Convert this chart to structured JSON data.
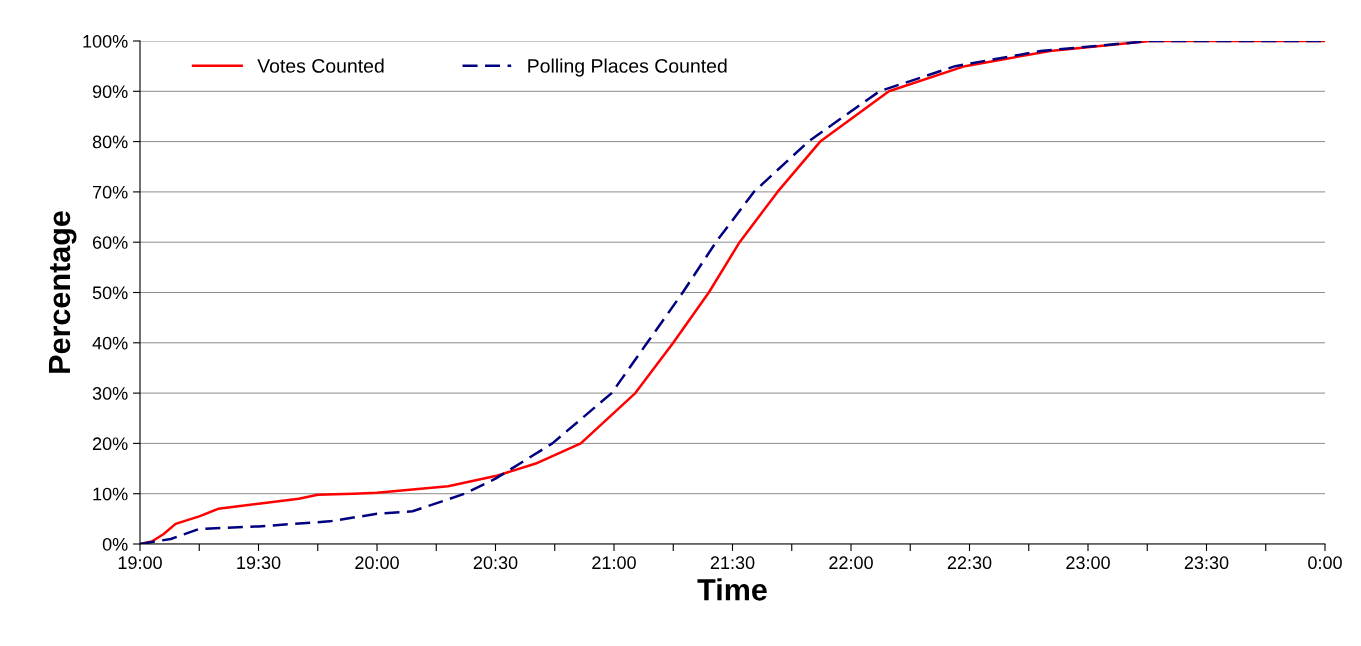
{
  "chart_data": {
    "type": "line",
    "xlabel": "Time",
    "ylabel": "Percentage",
    "xlim": [
      19,
      24
    ],
    "ylim": [
      0,
      100
    ],
    "xticks": [
      {
        "value": 19,
        "label": "19:00"
      },
      {
        "value": 19.25,
        "label": null
      },
      {
        "value": 19.5,
        "label": "19:30"
      },
      {
        "value": 19.75,
        "label": null
      },
      {
        "value": 20,
        "label": "20:00"
      },
      {
        "value": 20.25,
        "label": null
      },
      {
        "value": 20.5,
        "label": "20:30"
      },
      {
        "value": 20.75,
        "label": null
      },
      {
        "value": 21,
        "label": "21:00"
      },
      {
        "value": 21.25,
        "label": null
      },
      {
        "value": 21.5,
        "label": "21:30"
      },
      {
        "value": 21.75,
        "label": null
      },
      {
        "value": 22,
        "label": "22:00"
      },
      {
        "value": 22.25,
        "label": null
      },
      {
        "value": 22.5,
        "label": "22:30"
      },
      {
        "value": 22.75,
        "label": null
      },
      {
        "value": 23,
        "label": "23:00"
      },
      {
        "value": 23.25,
        "label": null
      },
      {
        "value": 23.5,
        "label": "23:30"
      },
      {
        "value": 23.75,
        "label": null
      },
      {
        "value": 24,
        "label": "0:00"
      }
    ],
    "yticks": [
      {
        "value": 0,
        "label": "0%"
      },
      {
        "value": 10,
        "label": "10%"
      },
      {
        "value": 20,
        "label": "20%"
      },
      {
        "value": 30,
        "label": "30%"
      },
      {
        "value": 40,
        "label": "40%"
      },
      {
        "value": 50,
        "label": "50%"
      },
      {
        "value": 60,
        "label": "60%"
      },
      {
        "value": 70,
        "label": "70%"
      },
      {
        "value": 80,
        "label": "80%"
      },
      {
        "value": 90,
        "label": "90%"
      },
      {
        "value": 100,
        "label": "100%"
      }
    ],
    "grid": "y",
    "legend": "top left",
    "marker": "none",
    "series": [
      {
        "name": "Votes Counted",
        "color": "#ff0000",
        "line_style": "solid",
        "x": [
          19.0,
          19.05,
          19.1,
          19.15,
          19.25,
          19.33,
          19.5,
          19.67,
          19.75,
          19.9,
          20.0,
          20.3,
          20.5,
          20.67,
          20.86,
          21.09,
          21.25,
          21.4,
          21.53,
          21.69,
          21.87,
          22.16,
          22.48,
          22.84,
          23.26,
          24.0
        ],
        "values": [
          0,
          0.5,
          2,
          4,
          5.5,
          7,
          8,
          9,
          9.8,
          10,
          10.2,
          11.5,
          13.5,
          16,
          20,
          30,
          40,
          50,
          60,
          70,
          80,
          90,
          95,
          98,
          100,
          100
        ]
      },
      {
        "name": "Polling Places Counted",
        "color": "#000080",
        "line_style": "dashed",
        "x": [
          19.0,
          19.13,
          19.25,
          19.5,
          19.8,
          20.0,
          20.15,
          20.37,
          20.5,
          20.74,
          20.99,
          21.14,
          21.29,
          21.43,
          21.59,
          21.82,
          22.12,
          22.44,
          22.8,
          23.26,
          24.0
        ],
        "values": [
          0,
          1,
          3,
          3.5,
          4.5,
          6,
          6.5,
          10,
          13,
          20,
          30,
          40,
          50,
          60,
          70,
          80,
          90,
          95,
          98,
          100,
          100
        ]
      }
    ]
  }
}
